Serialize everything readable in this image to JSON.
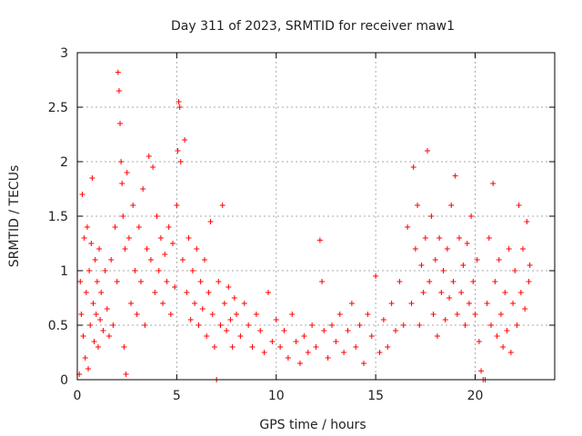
{
  "chart_data": {
    "type": "scatter",
    "title": "Day 311 of 2023, SRMTID for receiver maw1",
    "xlabel": "GPS time / hours",
    "ylabel": "SRMTID / TECUs",
    "xlim": [
      0,
      24
    ],
    "ylim": [
      0,
      3
    ],
    "xticks": [
      0,
      5,
      10,
      15,
      20
    ],
    "yticks": [
      0,
      0.5,
      1,
      1.5,
      2,
      2.5,
      3
    ],
    "xtick_labels": [
      "0",
      "5",
      "10",
      "15",
      "20"
    ],
    "ytick_labels": [
      "0",
      "0.5",
      "1",
      "1.5",
      "2",
      "2.5",
      "3"
    ],
    "grid": true,
    "marker": "+",
    "color": "#ff0000",
    "series": [
      {
        "name": "SRMTID",
        "points": [
          [
            0.1,
            0.05
          ],
          [
            0.15,
            0.9
          ],
          [
            0.2,
            0.6
          ],
          [
            0.25,
            1.7
          ],
          [
            0.3,
            0.4
          ],
          [
            0.35,
            1.3
          ],
          [
            0.4,
            0.2
          ],
          [
            0.45,
            0.8
          ],
          [
            0.5,
            1.4
          ],
          [
            0.55,
            0.1
          ],
          [
            0.6,
            1.0
          ],
          [
            0.65,
            0.5
          ],
          [
            0.7,
            1.25
          ],
          [
            0.75,
            1.85
          ],
          [
            0.8,
            0.7
          ],
          [
            0.85,
            0.35
          ],
          [
            0.9,
            1.1
          ],
          [
            0.95,
            0.6
          ],
          [
            1.0,
            0.9
          ],
          [
            1.05,
            0.3
          ],
          [
            1.1,
            1.2
          ],
          [
            1.15,
            0.55
          ],
          [
            1.2,
            0.8
          ],
          [
            1.3,
            0.45
          ],
          [
            1.4,
            1.0
          ],
          [
            1.5,
            0.65
          ],
          [
            1.6,
            0.4
          ],
          [
            1.7,
            1.1
          ],
          [
            1.8,
            0.5
          ],
          [
            1.9,
            1.4
          ],
          [
            2.0,
            0.9
          ],
          [
            2.05,
            2.82
          ],
          [
            2.1,
            2.65
          ],
          [
            2.15,
            2.35
          ],
          [
            2.2,
            2.0
          ],
          [
            2.25,
            1.8
          ],
          [
            2.3,
            1.5
          ],
          [
            2.35,
            0.3
          ],
          [
            2.4,
            1.2
          ],
          [
            2.45,
            0.05
          ],
          [
            2.5,
            1.9
          ],
          [
            2.6,
            1.3
          ],
          [
            2.7,
            0.7
          ],
          [
            2.8,
            1.6
          ],
          [
            2.9,
            1.0
          ],
          [
            3.0,
            0.6
          ],
          [
            3.1,
            1.4
          ],
          [
            3.2,
            0.9
          ],
          [
            3.3,
            1.75
          ],
          [
            3.4,
            0.5
          ],
          [
            3.5,
            1.2
          ],
          [
            3.6,
            2.05
          ],
          [
            3.7,
            1.1
          ],
          [
            3.8,
            1.95
          ],
          [
            3.9,
            0.8
          ],
          [
            4.0,
            1.5
          ],
          [
            4.1,
            1.0
          ],
          [
            4.2,
            1.3
          ],
          [
            4.3,
            0.7
          ],
          [
            4.4,
            1.15
          ],
          [
            4.5,
            0.9
          ],
          [
            4.6,
            1.4
          ],
          [
            4.7,
            0.6
          ],
          [
            4.8,
            1.25
          ],
          [
            4.9,
            0.85
          ],
          [
            5.0,
            1.6
          ],
          [
            5.05,
            2.1
          ],
          [
            5.1,
            2.55
          ],
          [
            5.15,
            2.5
          ],
          [
            5.2,
            2.0
          ],
          [
            5.3,
            1.1
          ],
          [
            5.4,
            2.2
          ],
          [
            5.5,
            0.8
          ],
          [
            5.6,
            1.3
          ],
          [
            5.7,
            0.55
          ],
          [
            5.8,
            1.0
          ],
          [
            5.9,
            0.7
          ],
          [
            6.0,
            1.2
          ],
          [
            6.1,
            0.5
          ],
          [
            6.2,
            0.9
          ],
          [
            6.3,
            0.65
          ],
          [
            6.4,
            1.1
          ],
          [
            6.5,
            0.4
          ],
          [
            6.6,
            0.8
          ],
          [
            6.7,
            1.45
          ],
          [
            6.8,
            0.6
          ],
          [
            6.9,
            0.3
          ],
          [
            7.0,
            0.0
          ],
          [
            7.1,
            0.9
          ],
          [
            7.2,
            0.5
          ],
          [
            7.3,
            1.6
          ],
          [
            7.4,
            0.7
          ],
          [
            7.5,
            0.45
          ],
          [
            7.6,
            0.85
          ],
          [
            7.7,
            0.55
          ],
          [
            7.8,
            0.3
          ],
          [
            7.9,
            0.75
          ],
          [
            8.0,
            0.6
          ],
          [
            8.2,
            0.4
          ],
          [
            8.4,
            0.7
          ],
          [
            8.6,
            0.5
          ],
          [
            8.8,
            0.3
          ],
          [
            9.0,
            0.6
          ],
          [
            9.2,
            0.45
          ],
          [
            9.4,
            0.25
          ],
          [
            9.6,
            0.8
          ],
          [
            9.8,
            0.35
          ],
          [
            10.0,
            0.55
          ],
          [
            10.2,
            0.3
          ],
          [
            10.4,
            0.45
          ],
          [
            10.6,
            0.2
          ],
          [
            10.8,
            0.6
          ],
          [
            11.0,
            0.35
          ],
          [
            11.2,
            0.15
          ],
          [
            11.4,
            0.4
          ],
          [
            11.6,
            0.25
          ],
          [
            11.8,
            0.5
          ],
          [
            12.0,
            0.3
          ],
          [
            12.2,
            1.28
          ],
          [
            12.3,
            0.9
          ],
          [
            12.4,
            0.45
          ],
          [
            12.6,
            0.2
          ],
          [
            12.8,
            0.5
          ],
          [
            13.0,
            0.35
          ],
          [
            13.2,
            0.6
          ],
          [
            13.4,
            0.25
          ],
          [
            13.6,
            0.45
          ],
          [
            13.8,
            0.7
          ],
          [
            14.0,
            0.3
          ],
          [
            14.2,
            0.5
          ],
          [
            14.4,
            0.15
          ],
          [
            14.6,
            0.6
          ],
          [
            14.8,
            0.4
          ],
          [
            15.0,
            0.95
          ],
          [
            15.2,
            0.25
          ],
          [
            15.4,
            0.55
          ],
          [
            15.6,
            0.3
          ],
          [
            15.8,
            0.7
          ],
          [
            16.0,
            0.45
          ],
          [
            16.2,
            0.9
          ],
          [
            16.4,
            0.5
          ],
          [
            16.6,
            1.4
          ],
          [
            16.8,
            0.7
          ],
          [
            16.9,
            1.95
          ],
          [
            17.0,
            1.2
          ],
          [
            17.1,
            1.6
          ],
          [
            17.2,
            0.5
          ],
          [
            17.3,
            1.05
          ],
          [
            17.4,
            0.8
          ],
          [
            17.5,
            1.3
          ],
          [
            17.6,
            2.1
          ],
          [
            17.7,
            0.9
          ],
          [
            17.8,
            1.5
          ],
          [
            17.9,
            0.6
          ],
          [
            18.0,
            1.1
          ],
          [
            18.1,
            0.4
          ],
          [
            18.2,
            1.3
          ],
          [
            18.3,
            0.8
          ],
          [
            18.4,
            1.0
          ],
          [
            18.5,
            0.55
          ],
          [
            18.6,
            1.2
          ],
          [
            18.7,
            0.75
          ],
          [
            18.8,
            1.6
          ],
          [
            18.9,
            0.9
          ],
          [
            19.0,
            1.87
          ],
          [
            19.1,
            0.6
          ],
          [
            19.2,
            1.3
          ],
          [
            19.3,
            0.8
          ],
          [
            19.4,
            1.05
          ],
          [
            19.5,
            0.5
          ],
          [
            19.6,
            1.25
          ],
          [
            19.7,
            0.7
          ],
          [
            19.8,
            1.5
          ],
          [
            19.9,
            0.9
          ],
          [
            20.0,
            0.6
          ],
          [
            20.1,
            1.1
          ],
          [
            20.2,
            0.35
          ],
          [
            20.3,
            0.08
          ],
          [
            20.4,
            0.0
          ],
          [
            20.5,
            0.0
          ],
          [
            20.6,
            0.7
          ],
          [
            20.7,
            1.3
          ],
          [
            20.8,
            0.5
          ],
          [
            20.9,
            1.8
          ],
          [
            21.0,
            0.9
          ],
          [
            21.1,
            0.4
          ],
          [
            21.2,
            1.1
          ],
          [
            21.3,
            0.6
          ],
          [
            21.4,
            0.3
          ],
          [
            21.5,
            0.8
          ],
          [
            21.6,
            0.45
          ],
          [
            21.7,
            1.2
          ],
          [
            21.8,
            0.25
          ],
          [
            21.9,
            0.7
          ],
          [
            22.0,
            1.0
          ],
          [
            22.1,
            0.5
          ],
          [
            22.2,
            1.6
          ],
          [
            22.3,
            0.8
          ],
          [
            22.4,
            1.2
          ],
          [
            22.5,
            0.65
          ],
          [
            22.6,
            1.45
          ],
          [
            22.7,
            0.9
          ],
          [
            22.75,
            1.05
          ]
        ]
      }
    ]
  }
}
